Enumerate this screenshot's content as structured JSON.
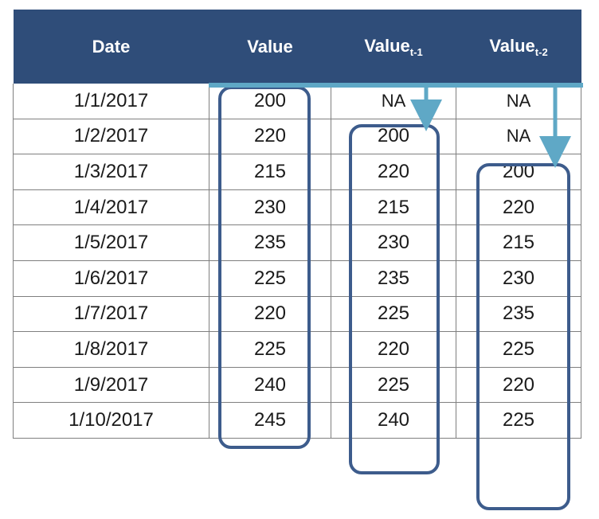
{
  "table": {
    "headers": [
      {
        "main": "Date",
        "sub": ""
      },
      {
        "main": "Value",
        "sub": ""
      },
      {
        "main": "Value",
        "sub": "t-1"
      },
      {
        "main": "Value",
        "sub": "t-2"
      }
    ],
    "rows": [
      [
        "1/1/2017",
        "200",
        "NA",
        "NA"
      ],
      [
        "1/2/2017",
        "220",
        "200",
        "NA"
      ],
      [
        "1/3/2017",
        "215",
        "220",
        "200"
      ],
      [
        "1/4/2017",
        "230",
        "215",
        "220"
      ],
      [
        "1/5/2017",
        "235",
        "230",
        "215"
      ],
      [
        "1/6/2017",
        "225",
        "235",
        "230"
      ],
      [
        "1/7/2017",
        "220",
        "225",
        "235"
      ],
      [
        "1/8/2017",
        "225",
        "220",
        "225"
      ],
      [
        "1/9/2017",
        "240",
        "225",
        "220"
      ],
      [
        "1/10/2017",
        "245",
        "240",
        "225"
      ]
    ]
  },
  "colors": {
    "header_bg": "#2f4d79",
    "header_text": "#ffffff",
    "highlight_box": "#3d5c8c",
    "shift_arrow": "#5fa8c6"
  }
}
